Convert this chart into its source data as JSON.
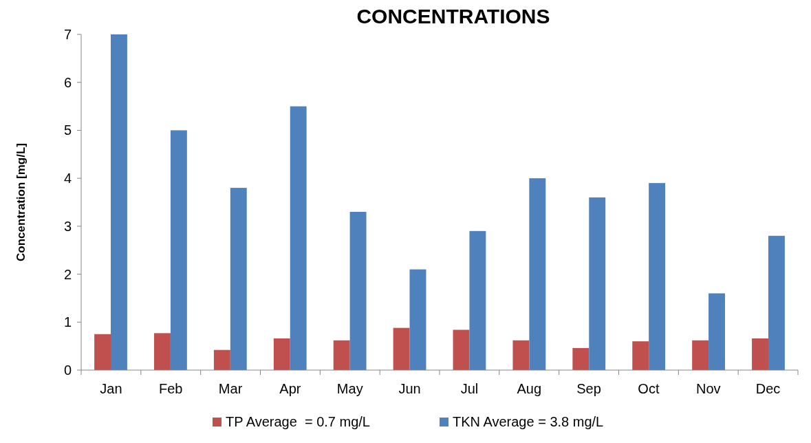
{
  "chart_data": {
    "type": "bar",
    "title": "CONCENTRATIONS",
    "ylabel": "Concentration [mg/L]",
    "categories": [
      "Jan",
      "Feb",
      "Mar",
      "Apr",
      "May",
      "Jun",
      "Jul",
      "Aug",
      "Sep",
      "Oct",
      "Nov",
      "Dec"
    ],
    "series": [
      {
        "name": "TP Average  = 0.7 mg/L",
        "color": "#c0504d",
        "values": [
          0.75,
          0.77,
          0.42,
          0.66,
          0.62,
          0.88,
          0.84,
          0.62,
          0.46,
          0.6,
          0.62,
          0.66
        ]
      },
      {
        "name": "TKN Average = 3.8 mg/L",
        "color": "#4f81bd",
        "values": [
          7,
          5,
          3.8,
          5.5,
          3.3,
          2.1,
          2.9,
          4,
          3.6,
          3.9,
          1.6,
          2.8
        ]
      }
    ],
    "ylim": [
      0,
      7
    ],
    "yticks": [
      0,
      1,
      2,
      3,
      4,
      5,
      6,
      7
    ],
    "grid": false,
    "legend": "bottom"
  }
}
